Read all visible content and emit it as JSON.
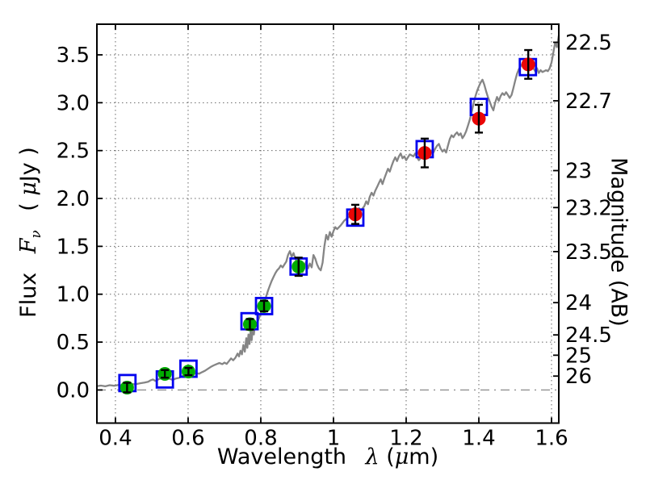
{
  "axes": {
    "xlabel": {
      "word": "Wavelength",
      "math": "λ",
      "unit_open": "(",
      "unit_mu": "μ",
      "unit_close": "m)"
    },
    "ylabel_left": {
      "word": "Flux",
      "math": "F",
      "sub": "ν",
      "unit_open": "( ",
      "unit_mu": "μ",
      "unit_close": "Jy )"
    },
    "ylabel_right": {
      "text": "Magnitude (AB)"
    }
  },
  "chart_data": {
    "type": "line",
    "title": "",
    "xlabel": "Wavelength λ (μm)",
    "ylabel_left": "Flux Fν ( μJy )",
    "ylabel_right": "Magnitude (AB)",
    "xlim": [
      0.349,
      1.62
    ],
    "ylim": [
      -0.346,
      3.82
    ],
    "grid": true,
    "zero_line_flux": 0.0,
    "colors": {
      "spectrum": "#858585",
      "model_square": "#0202ee",
      "observed_green": "#00ad00",
      "observed_red": "#ea0606",
      "error_bar": "#000000",
      "grid": "#666666",
      "zero_line": "#909090"
    },
    "x_ticks": [
      {
        "v": 0.4,
        "label": "0.4"
      },
      {
        "v": 0.6,
        "label": "0.6"
      },
      {
        "v": 0.8,
        "label": "0.8"
      },
      {
        "v": 1.0,
        "label": "1"
      },
      {
        "v": 1.2,
        "label": "1.2"
      },
      {
        "v": 1.4,
        "label": "1.4"
      },
      {
        "v": 1.6,
        "label": "1.6"
      }
    ],
    "y_ticks_left": [
      {
        "v": 0.0,
        "label": "0.0"
      },
      {
        "v": 0.5,
        "label": "0.5"
      },
      {
        "v": 1.0,
        "label": "1.0"
      },
      {
        "v": 1.5,
        "label": "1.5"
      },
      {
        "v": 2.0,
        "label": "2.0"
      },
      {
        "v": 2.5,
        "label": "2.5"
      },
      {
        "v": 3.0,
        "label": "3.0"
      },
      {
        "v": 3.5,
        "label": "3.5"
      }
    ],
    "y_ticks_right": [
      {
        "flux": 3.631,
        "label": "22.5"
      },
      {
        "flux": 3.02,
        "label": "22.7"
      },
      {
        "flux": 2.291,
        "label": "23"
      },
      {
        "flux": 1.905,
        "label": "23.2"
      },
      {
        "flux": 1.445,
        "label": "23.5"
      },
      {
        "flux": 0.912,
        "label": "24"
      },
      {
        "flux": 0.575,
        "label": "24.5"
      },
      {
        "flux": 0.363,
        "label": "25"
      },
      {
        "flux": 0.145,
        "label": "26"
      }
    ],
    "series": [
      {
        "name": "model-spectrum",
        "type": "line",
        "points": [
          [
            0.349,
            0.04
          ],
          [
            0.36,
            0.046
          ],
          [
            0.372,
            0.038
          ],
          [
            0.384,
            0.05
          ],
          [
            0.396,
            0.044
          ],
          [
            0.408,
            0.052
          ],
          [
            0.42,
            0.048
          ],
          [
            0.432,
            0.058
          ],
          [
            0.444,
            0.062
          ],
          [
            0.456,
            0.06
          ],
          [
            0.468,
            0.07
          ],
          [
            0.48,
            0.078
          ],
          [
            0.49,
            0.086
          ],
          [
            0.496,
            0.1
          ],
          [
            0.503,
            0.11
          ],
          [
            0.51,
            0.095
          ],
          [
            0.52,
            0.115
          ],
          [
            0.53,
            0.125
          ],
          [
            0.54,
            0.132
          ],
          [
            0.55,
            0.115
          ],
          [
            0.558,
            0.105
          ],
          [
            0.566,
            0.12
          ],
          [
            0.574,
            0.126
          ],
          [
            0.582,
            0.14
          ],
          [
            0.59,
            0.155
          ],
          [
            0.598,
            0.15
          ],
          [
            0.604,
            0.17
          ],
          [
            0.61,
            0.186
          ],
          [
            0.616,
            0.165
          ],
          [
            0.622,
            0.176
          ],
          [
            0.63,
            0.17
          ],
          [
            0.638,
            0.186
          ],
          [
            0.646,
            0.2
          ],
          [
            0.654,
            0.22
          ],
          [
            0.662,
            0.24
          ],
          [
            0.67,
            0.256
          ],
          [
            0.678,
            0.27
          ],
          [
            0.686,
            0.282
          ],
          [
            0.694,
            0.27
          ],
          [
            0.7,
            0.286
          ],
          [
            0.706,
            0.272
          ],
          [
            0.712,
            0.3
          ],
          [
            0.718,
            0.33
          ],
          [
            0.724,
            0.31
          ],
          [
            0.73,
            0.336
          ],
          [
            0.736,
            0.38
          ],
          [
            0.74,
            0.35
          ],
          [
            0.744,
            0.41
          ],
          [
            0.748,
            0.372
          ],
          [
            0.752,
            0.47
          ],
          [
            0.756,
            0.4
          ],
          [
            0.76,
            0.54
          ],
          [
            0.763,
            0.44
          ],
          [
            0.766,
            0.58
          ],
          [
            0.769,
            0.48
          ],
          [
            0.772,
            0.62
          ],
          [
            0.775,
            0.52
          ],
          [
            0.778,
            0.66
          ],
          [
            0.781,
            0.58
          ],
          [
            0.784,
            0.7
          ],
          [
            0.788,
            0.67
          ],
          [
            0.792,
            0.72
          ],
          [
            0.796,
            0.76
          ],
          [
            0.8,
            0.8
          ],
          [
            0.805,
            0.86
          ],
          [
            0.81,
            0.91
          ],
          [
            0.815,
            0.98
          ],
          [
            0.82,
            1.04
          ],
          [
            0.825,
            1.09
          ],
          [
            0.83,
            1.14
          ],
          [
            0.835,
            1.18
          ],
          [
            0.84,
            1.22
          ],
          [
            0.845,
            1.25
          ],
          [
            0.85,
            1.27
          ],
          [
            0.855,
            1.3
          ],
          [
            0.86,
            1.28
          ],
          [
            0.865,
            1.31
          ],
          [
            0.87,
            1.34
          ],
          [
            0.875,
            1.41
          ],
          [
            0.88,
            1.45
          ],
          [
            0.885,
            1.39
          ],
          [
            0.89,
            1.43
          ],
          [
            0.895,
            1.37
          ],
          [
            0.9,
            1.33
          ],
          [
            0.905,
            1.3
          ],
          [
            0.91,
            1.28
          ],
          [
            0.915,
            1.23
          ],
          [
            0.92,
            1.3
          ],
          [
            0.925,
            1.34
          ],
          [
            0.93,
            1.27
          ],
          [
            0.935,
            1.32
          ],
          [
            0.94,
            1.28
          ],
          [
            0.945,
            1.41
          ],
          [
            0.95,
            1.37
          ],
          [
            0.955,
            1.31
          ],
          [
            0.96,
            1.27
          ],
          [
            0.965,
            1.25
          ],
          [
            0.97,
            1.33
          ],
          [
            0.975,
            1.5
          ],
          [
            0.98,
            1.62
          ],
          [
            0.985,
            1.57
          ],
          [
            0.99,
            1.65
          ],
          [
            0.995,
            1.6
          ],
          [
            1.0,
            1.66
          ],
          [
            1.005,
            1.7
          ],
          [
            1.01,
            1.68
          ],
          [
            1.02,
            1.72
          ],
          [
            1.03,
            1.77
          ],
          [
            1.04,
            1.8
          ],
          [
            1.05,
            1.83
          ],
          [
            1.055,
            1.81
          ],
          [
            1.06,
            1.85
          ],
          [
            1.065,
            1.83
          ],
          [
            1.07,
            1.9
          ],
          [
            1.075,
            1.87
          ],
          [
            1.085,
            1.92
          ],
          [
            1.09,
            1.97
          ],
          [
            1.095,
            1.94
          ],
          [
            1.1,
            2.02
          ],
          [
            1.105,
            2.06
          ],
          [
            1.11,
            2.03
          ],
          [
            1.115,
            2.08
          ],
          [
            1.12,
            2.12
          ],
          [
            1.125,
            2.16
          ],
          [
            1.13,
            2.2
          ],
          [
            1.135,
            2.15
          ],
          [
            1.14,
            2.21
          ],
          [
            1.145,
            2.26
          ],
          [
            1.15,
            2.31
          ],
          [
            1.155,
            2.28
          ],
          [
            1.16,
            2.34
          ],
          [
            1.165,
            2.39
          ],
          [
            1.17,
            2.43
          ],
          [
            1.175,
            2.39
          ],
          [
            1.18,
            2.44
          ],
          [
            1.185,
            2.47
          ],
          [
            1.19,
            2.42
          ],
          [
            1.195,
            2.44
          ],
          [
            1.2,
            2.4
          ],
          [
            1.205,
            2.43
          ],
          [
            1.21,
            2.46
          ],
          [
            1.22,
            2.44
          ],
          [
            1.225,
            2.47
          ],
          [
            1.23,
            2.43
          ],
          [
            1.235,
            2.4
          ],
          [
            1.245,
            2.44
          ],
          [
            1.25,
            2.47
          ],
          [
            1.255,
            2.44
          ],
          [
            1.26,
            2.42
          ],
          [
            1.265,
            2.46
          ],
          [
            1.27,
            2.5
          ],
          [
            1.275,
            2.48
          ],
          [
            1.28,
            2.52
          ],
          [
            1.285,
            2.55
          ],
          [
            1.29,
            2.57
          ],
          [
            1.295,
            2.52
          ],
          [
            1.3,
            2.49
          ],
          [
            1.305,
            2.51
          ],
          [
            1.31,
            2.48
          ],
          [
            1.315,
            2.55
          ],
          [
            1.32,
            2.62
          ],
          [
            1.325,
            2.66
          ],
          [
            1.33,
            2.64
          ],
          [
            1.335,
            2.67
          ],
          [
            1.34,
            2.69
          ],
          [
            1.345,
            2.66
          ],
          [
            1.35,
            2.68
          ],
          [
            1.355,
            2.63
          ],
          [
            1.36,
            2.66
          ],
          [
            1.365,
            2.7
          ],
          [
            1.37,
            2.76
          ],
          [
            1.375,
            2.82
          ],
          [
            1.38,
            2.9
          ],
          [
            1.385,
            2.98
          ],
          [
            1.39,
            3.06
          ],
          [
            1.395,
            3.12
          ],
          [
            1.4,
            3.17
          ],
          [
            1.405,
            3.21
          ],
          [
            1.41,
            3.24
          ],
          [
            1.415,
            3.19
          ],
          [
            1.42,
            3.12
          ],
          [
            1.425,
            3.06
          ],
          [
            1.43,
            3.01
          ],
          [
            1.435,
            2.96
          ],
          [
            1.44,
            2.92
          ],
          [
            1.445,
            3.0
          ],
          [
            1.45,
            3.06
          ],
          [
            1.455,
            3.02
          ],
          [
            1.46,
            3.07
          ],
          [
            1.465,
            3.1
          ],
          [
            1.47,
            3.08
          ],
          [
            1.475,
            3.11
          ],
          [
            1.48,
            3.08
          ],
          [
            1.485,
            3.05
          ],
          [
            1.49,
            3.08
          ],
          [
            1.495,
            3.15
          ],
          [
            1.5,
            3.23
          ],
          [
            1.505,
            3.3
          ],
          [
            1.51,
            3.35
          ],
          [
            1.515,
            3.38
          ],
          [
            1.52,
            3.41
          ],
          [
            1.525,
            3.38
          ],
          [
            1.53,
            3.4
          ],
          [
            1.535,
            3.42
          ],
          [
            1.54,
            3.39
          ],
          [
            1.545,
            3.42
          ],
          [
            1.55,
            3.36
          ],
          [
            1.555,
            3.33
          ],
          [
            1.56,
            3.36
          ],
          [
            1.565,
            3.31
          ],
          [
            1.57,
            3.34
          ],
          [
            1.575,
            3.32
          ],
          [
            1.58,
            3.33
          ],
          [
            1.585,
            3.34
          ],
          [
            1.59,
            3.33
          ],
          [
            1.595,
            3.36
          ],
          [
            1.6,
            3.42
          ],
          [
            1.605,
            3.52
          ],
          [
            1.61,
            3.63
          ],
          [
            1.615,
            3.58
          ],
          [
            1.62,
            3.7
          ]
        ]
      },
      {
        "name": "model-photometry-squares",
        "type": "scatter-open-square",
        "points": [
          [
            0.433,
            0.072
          ],
          [
            0.536,
            0.11
          ],
          [
            0.601,
            0.222
          ],
          [
            0.769,
            0.718
          ],
          [
            0.809,
            0.876
          ],
          [
            0.904,
            1.289
          ],
          [
            1.06,
            1.8
          ],
          [
            1.251,
            2.515
          ],
          [
            1.4,
            2.956
          ],
          [
            1.535,
            3.372
          ]
        ]
      },
      {
        "name": "observed-photometry-green",
        "type": "scatter-circle-errorbar",
        "points": [
          [
            0.432,
            0.025,
            0.05
          ],
          [
            0.536,
            0.168,
            0.04
          ],
          [
            0.601,
            0.192,
            0.038
          ],
          [
            0.77,
            0.686,
            0.055
          ],
          [
            0.809,
            0.876,
            0.055
          ],
          [
            0.904,
            1.287,
            0.095
          ]
        ]
      },
      {
        "name": "observed-photometry-red",
        "type": "scatter-circle-errorbar",
        "points": [
          [
            1.06,
            1.834,
            0.1
          ],
          [
            1.251,
            2.475,
            0.15
          ],
          [
            1.4,
            2.833,
            0.145
          ],
          [
            1.536,
            3.4,
            0.15
          ]
        ]
      }
    ]
  }
}
